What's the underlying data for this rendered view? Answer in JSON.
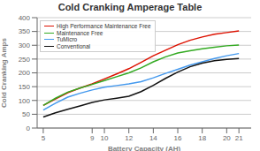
{
  "chart_data": {
    "type": "line",
    "title": "Cold Cranking Amperage Table",
    "xlabel": "Battery Capacity (AH)",
    "ylabel": "Cold Cranking Amps",
    "x": [
      5,
      6,
      7,
      8,
      9,
      10,
      11,
      12,
      13,
      14,
      15,
      16,
      17,
      18,
      19,
      20,
      21
    ],
    "series": [
      {
        "name": "High Performance Maintenance Free",
        "color": "#dd1100",
        "values": [
          82,
          105,
          128,
          145,
          160,
          178,
          196,
          215,
          238,
          262,
          282,
          302,
          318,
          330,
          340,
          346,
          352
        ]
      },
      {
        "name": "Maintenance Free",
        "color": "#33aa22",
        "values": [
          82,
          108,
          130,
          145,
          158,
          172,
          186,
          200,
          218,
          240,
          258,
          272,
          280,
          287,
          293,
          298,
          301
        ]
      },
      {
        "name": "TuMicro",
        "color": "#4499ee",
        "values": [
          65,
          90,
          112,
          126,
          138,
          148,
          154,
          160,
          168,
          182,
          198,
          213,
          228,
          240,
          252,
          262,
          270
        ]
      },
      {
        "name": "Conventional",
        "color": "#111111",
        "values": [
          40,
          55,
          68,
          80,
          93,
          102,
          108,
          115,
          132,
          155,
          180,
          203,
          222,
          235,
          244,
          249,
          252
        ]
      }
    ],
    "xlim": [
      4.5,
      22
    ],
    "ylim": [
      0,
      400
    ],
    "xticks": [
      5,
      9,
      10,
      12,
      14,
      16,
      18,
      20,
      21
    ],
    "yticks": [
      0,
      50,
      100,
      150,
      200,
      250,
      300,
      350,
      400
    ],
    "grid": "y",
    "legend": "upper left"
  }
}
